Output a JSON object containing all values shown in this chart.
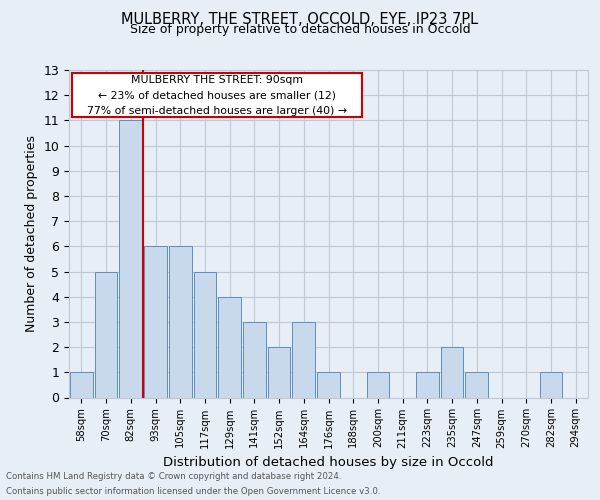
{
  "title1": "MULBERRY, THE STREET, OCCOLD, EYE, IP23 7PL",
  "title2": "Size of property relative to detached houses in Occold",
  "xlabel": "Distribution of detached houses by size in Occold",
  "ylabel": "Number of detached properties",
  "bar_labels": [
    "58sqm",
    "70sqm",
    "82sqm",
    "93sqm",
    "105sqm",
    "117sqm",
    "129sqm",
    "141sqm",
    "152sqm",
    "164sqm",
    "176sqm",
    "188sqm",
    "200sqm",
    "211sqm",
    "223sqm",
    "235sqm",
    "247sqm",
    "259sqm",
    "270sqm",
    "282sqm",
    "294sqm"
  ],
  "bar_values": [
    1,
    5,
    11,
    6,
    6,
    5,
    4,
    3,
    2,
    3,
    1,
    0,
    1,
    0,
    1,
    2,
    1,
    0,
    0,
    1,
    0
  ],
  "bar_color": "#c9d9ec",
  "bar_edgecolor": "#5b8ec4",
  "ylim": [
    0,
    13
  ],
  "yticks": [
    0,
    1,
    2,
    3,
    4,
    5,
    6,
    7,
    8,
    9,
    10,
    11,
    12,
    13
  ],
  "red_line_x": 2.5,
  "red_line_color": "#cc0000",
  "annotation_text": "MULBERRY THE STREET: 90sqm\n← 23% of detached houses are smaller (12)\n77% of semi-detached houses are larger (40) →",
  "annotation_box_edgecolor": "#cc0000",
  "footer1": "Contains HM Land Registry data © Crown copyright and database right 2024.",
  "footer2": "Contains public sector information licensed under the Open Government Licence v3.0.",
  "background_color": "#e8eef5",
  "grid_color": "#c0c8d8"
}
